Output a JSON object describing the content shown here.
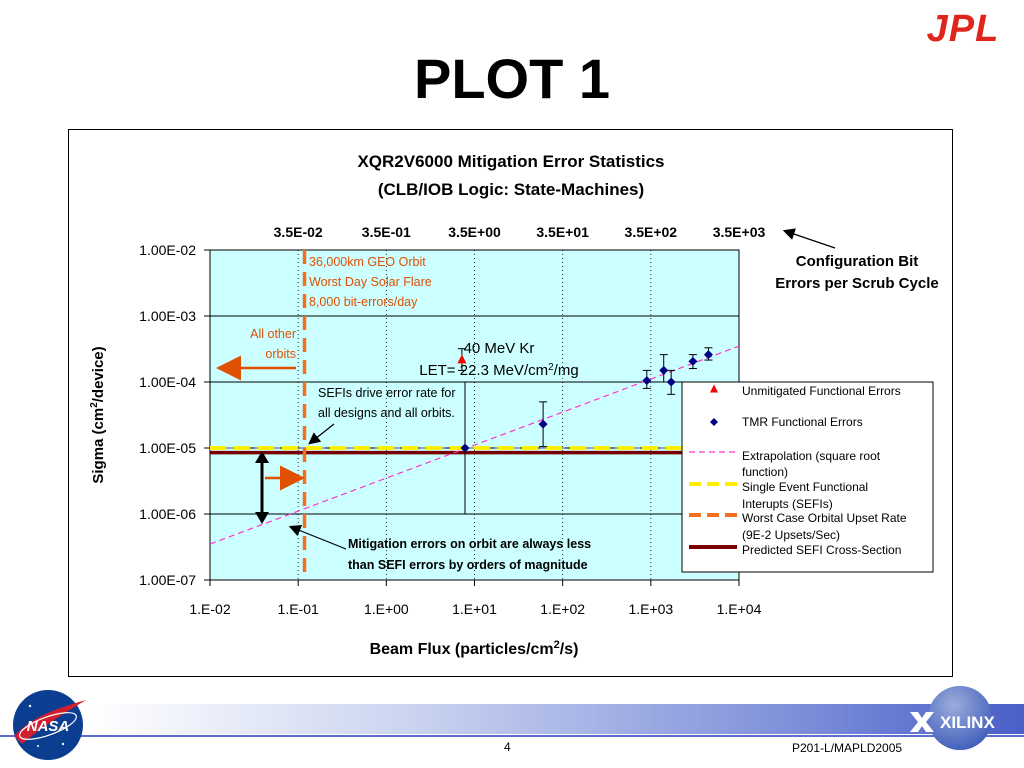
{
  "slide": {
    "title": "PLOT 1",
    "page_number": "4",
    "doc_code": "P201-L/MAPLD2005",
    "logo_jpl": "JPL",
    "logo_nasa": "NASA",
    "logo_xilinx": "XILINX"
  },
  "colors": {
    "plot_bg": "#ccffff",
    "unmitigated": "#ff0000",
    "tmr": "#000080",
    "extrapolation": "#ff33cc",
    "sefi_yellow": "#ffee00",
    "orbital_orange": "#f07020",
    "sefi_cross": "#7a0000",
    "annotation_orange": "#e05000",
    "jpl_red": "#e0251b"
  },
  "chart_data": {
    "type": "scatter",
    "title_line1": "XQR2V6000 Mitigation Error Statistics",
    "title_line2": "(CLB/IOB Logic: State-Machines)",
    "xlabel_main": "Beam Flux (particles/cm",
    "xlabel_sup": "2",
    "xlabel_end": "/s)",
    "ylabel_main": "Sigma (cm",
    "ylabel_sup": "2",
    "ylabel_end": "/device)",
    "x_scale": "log",
    "y_scale": "log",
    "xlim": [
      0.01,
      10000
    ],
    "ylim": [
      1e-07,
      0.01
    ],
    "x_ticks": [
      0.01,
      0.1,
      1,
      10,
      100,
      1000,
      10000
    ],
    "x_tick_labels": [
      "1.E-02",
      "1.E-01",
      "1.E+00",
      "1.E+01",
      "1.E+02",
      "1.E+03",
      "1.E+04"
    ],
    "y_ticks": [
      1e-07,
      1e-06,
      1e-05,
      0.0001,
      0.001,
      0.01
    ],
    "y_tick_labels": [
      "1.00E-07",
      "1.00E-06",
      "1.00E-05",
      "1.00E-04",
      "1.00E-03",
      "1.00E-02"
    ],
    "secondary_axis": {
      "ticks": [
        0.1,
        1,
        10,
        100,
        1000,
        10000
      ],
      "labels": [
        "3.5E-02",
        "3.5E-01",
        "3.5E+00",
        "3.5E+01",
        "3.5E+02",
        "3.5E+03"
      ],
      "caption_line1": "Configuration Bit",
      "caption_line2": "Errors per Scrub Cycle"
    },
    "grid": "horizontal major, vertical dotted at decades",
    "series": [
      {
        "name": "Unmitigated Functional Errors",
        "marker": "triangle",
        "points": [
          {
            "x": 7.2,
            "y": 0.00022,
            "lo": 0.00015,
            "hi": 0.00032
          }
        ]
      },
      {
        "name": "TMR Functional Errors",
        "marker": "diamond",
        "points": [
          {
            "x": 7.8,
            "y": 1e-05,
            "lo": 1e-06,
            "hi": 0.0001
          },
          {
            "x": 60,
            "y": 2.3e-05,
            "lo": 1.05e-05,
            "hi": 5e-05
          },
          {
            "x": 900,
            "y": 0.000105,
            "lo": 8e-05,
            "hi": 0.00015
          },
          {
            "x": 1400,
            "y": 0.00015,
            "lo": 0.0001,
            "hi": 0.00026
          },
          {
            "x": 1700,
            "y": 0.0001,
            "lo": 6.5e-05,
            "hi": 0.00015
          },
          {
            "x": 3000,
            "y": 0.000205,
            "lo": 0.00016,
            "hi": 0.00026
          },
          {
            "x": 4500,
            "y": 0.00026,
            "lo": 0.000215,
            "hi": 0.00033
          }
        ]
      },
      {
        "name": "Extrapolation (square root function)",
        "style": "dashed",
        "line": [
          {
            "x": 0.01,
            "y": 3.5e-07
          },
          {
            "x": 10000,
            "y": 0.00035
          }
        ]
      },
      {
        "name": "Single Event Functional Interupts (SEFIs)",
        "style": "thick-dashed-horizontal",
        "y": 1e-05
      },
      {
        "name": "Worst Case Orbital Upset Rate (9E-2 Upsets/Sec)",
        "style": "thick-dashed-vertical",
        "x": 0.118
      },
      {
        "name": "Predicted SEFI Cross-Section",
        "style": "solid-horizontal",
        "y": 8.5e-06
      }
    ],
    "legend": {
      "placement": "right",
      "entries": [
        {
          "lines": [
            "Unmitigated Functional Errors"
          ]
        },
        {
          "lines": [
            "TMR Functional Errors"
          ]
        },
        {
          "lines": [
            "Extrapolation (square root",
            "function)"
          ]
        },
        {
          "lines": [
            "Single Event Functional",
            "Interupts (SEFIs)"
          ]
        },
        {
          "lines": [
            "Worst Case Orbital Upset Rate",
            "(9E-2 Upsets/Sec)"
          ]
        },
        {
          "lines": [
            "Predicted SEFI Cross-Section"
          ]
        }
      ]
    },
    "annotations": {
      "geo_line1": "36,000km GEO Orbit",
      "geo_line2": "Worst Day Solar Flare",
      "geo_line3": "8,000 bit-errors/day",
      "other_line1": "All other",
      "other_line2": "orbits",
      "kr_line1": "40 MeV Kr",
      "kr_line2_main": "LET= 22.3 MeV/cm",
      "kr_line2_sup": "2",
      "kr_line2_end": "/mg",
      "sefi_line1": "SEFIs drive error rate for",
      "sefi_line2": "all designs and all orbits.",
      "mit_line1": "Mitigation errors on orbit are always less",
      "mit_line2": "than SEFI errors by orders of magnitude"
    }
  }
}
